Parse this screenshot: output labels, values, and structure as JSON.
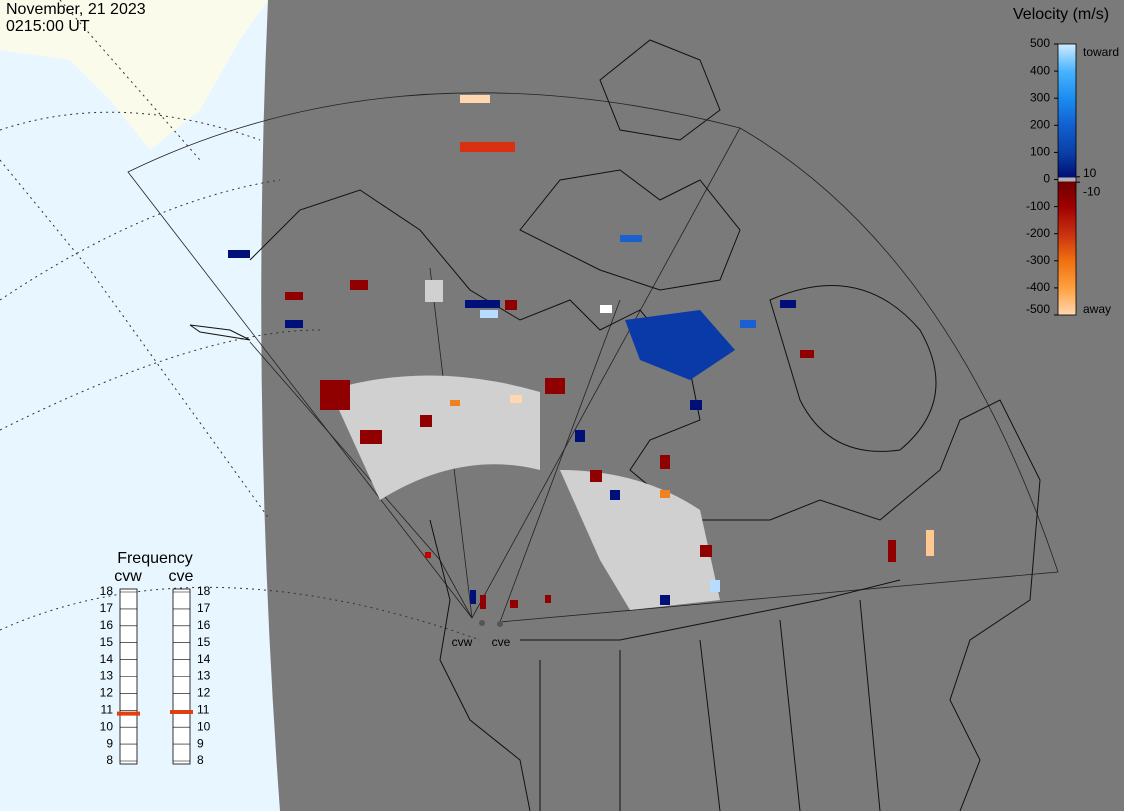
{
  "header": {
    "date": "November, 21 2023",
    "time": "0215:00 UT"
  },
  "velocity_scale": {
    "title": "Velocity (m/s)",
    "range": [
      -500,
      500
    ],
    "ticks": [
      500,
      400,
      300,
      200,
      100,
      0,
      -100,
      -200,
      -300,
      -400,
      -500
    ],
    "inner_ticks": [
      10,
      -10
    ],
    "toward_label": "toward",
    "away_label": "away"
  },
  "frequency": {
    "title": "Frequency",
    "range": [
      8,
      18
    ],
    "ticks": [
      18,
      17,
      16,
      15,
      14,
      13,
      12,
      11,
      10,
      9,
      8
    ],
    "radars": [
      {
        "name": "cvw",
        "value": 10.8,
        "color": "#e04010"
      },
      {
        "name": "cve",
        "value": 10.9,
        "color": "#e04010"
      }
    ]
  },
  "map_labels": [
    "cvw",
    "cve"
  ]
}
